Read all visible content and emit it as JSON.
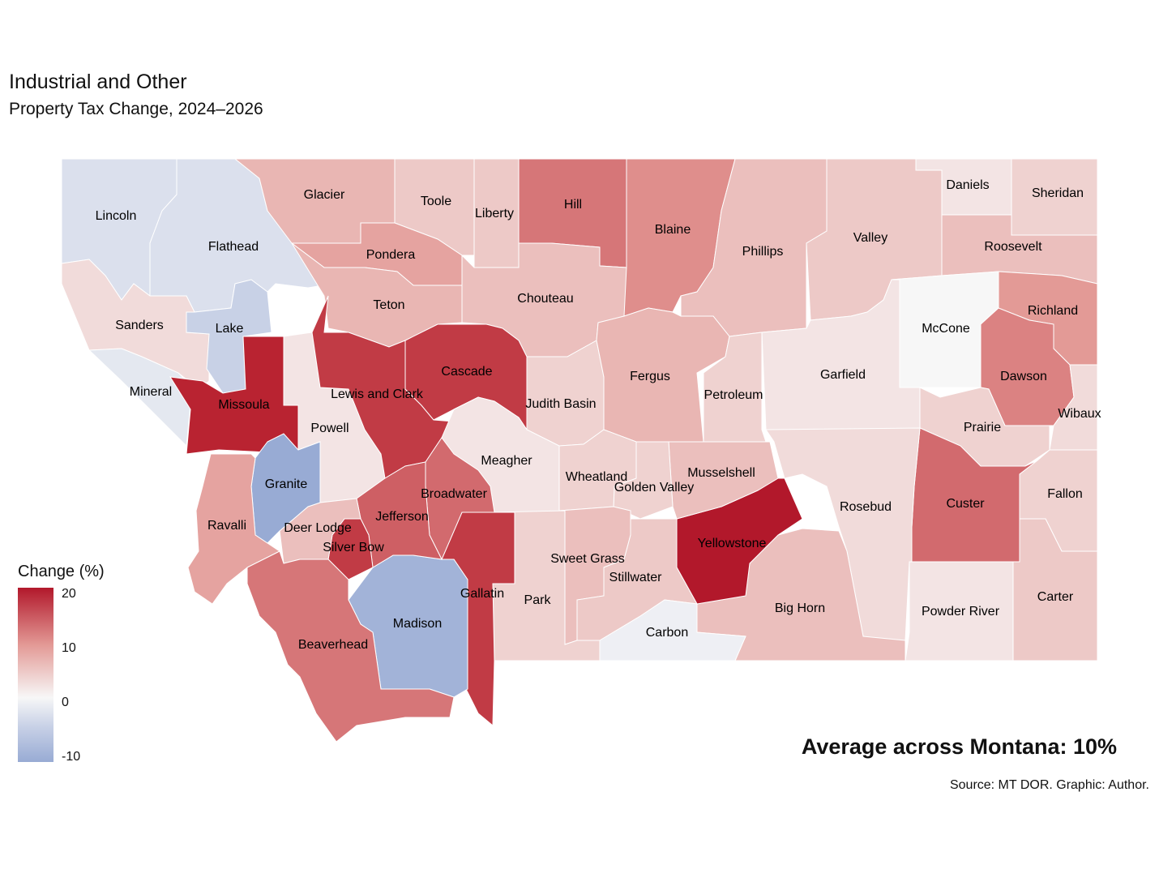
{
  "title": "Industrial and Other",
  "subtitle": "Property Tax Change, 2024–2026",
  "legend": {
    "title": "Change (%)",
    "ticks": [
      "20",
      "10",
      "0",
      "-10"
    ],
    "colors": {
      "high": "#b2182b",
      "mid": "#f7f7f7",
      "low": "#98abd4"
    },
    "range": [
      -10,
      22
    ]
  },
  "annotation": "Average across Montana: 10%",
  "source": "Source: MT DOR. Graphic: Author.",
  "counties": [
    {
      "name": "Lincoln",
      "value": -3
    },
    {
      "name": "Flathead",
      "value": -3
    },
    {
      "name": "Glacier",
      "value": 7
    },
    {
      "name": "Toole",
      "value": 5
    },
    {
      "name": "Liberty",
      "value": 5
    },
    {
      "name": "Hill",
      "value": 13
    },
    {
      "name": "Blaine",
      "value": 11
    },
    {
      "name": "Phillips",
      "value": 6
    },
    {
      "name": "Valley",
      "value": 5
    },
    {
      "name": "Daniels",
      "value": 2
    },
    {
      "name": "Sheridan",
      "value": 4
    },
    {
      "name": "Roosevelt",
      "value": 6
    },
    {
      "name": "Pondera",
      "value": 9
    },
    {
      "name": "Teton",
      "value": 7
    },
    {
      "name": "Chouteau",
      "value": 6
    },
    {
      "name": "Sanders",
      "value": 3
    },
    {
      "name": "Lake",
      "value": -5
    },
    {
      "name": "Mineral",
      "value": -2
    },
    {
      "name": "Missoula",
      "value": 20
    },
    {
      "name": "Powell",
      "value": 2
    },
    {
      "name": "Lewis and Clark",
      "value": 18
    },
    {
      "name": "Cascade",
      "value": 18
    },
    {
      "name": "Judith Basin",
      "value": 4
    },
    {
      "name": "Meagher",
      "value": 2
    },
    {
      "name": "Fergus",
      "value": 7
    },
    {
      "name": "Petroleum",
      "value": 4
    },
    {
      "name": "Garfield",
      "value": 2
    },
    {
      "name": "McCone",
      "value": 0
    },
    {
      "name": "Richland",
      "value": 10
    },
    {
      "name": "Dawson",
      "value": 12
    },
    {
      "name": "Wibaux",
      "value": 3
    },
    {
      "name": "Prairie",
      "value": 4
    },
    {
      "name": "Custer",
      "value": 14
    },
    {
      "name": "Fallon",
      "value": 4
    },
    {
      "name": "Carter",
      "value": 5
    },
    {
      "name": "Powder River",
      "value": 2
    },
    {
      "name": "Rosebud",
      "value": 3
    },
    {
      "name": "Big Horn",
      "value": 6
    },
    {
      "name": "Yellowstone",
      "value": 22
    },
    {
      "name": "Musselshell",
      "value": 6
    },
    {
      "name": "Golden Valley",
      "value": 4
    },
    {
      "name": "Wheatland",
      "value": 4
    },
    {
      "name": "Sweet Grass",
      "value": 6
    },
    {
      "name": "Stillwater",
      "value": 5
    },
    {
      "name": "Carbon",
      "value": -1
    },
    {
      "name": "Park",
      "value": 4
    },
    {
      "name": "Gallatin",
      "value": 18
    },
    {
      "name": "Madison",
      "value": -9
    },
    {
      "name": "Broadwater",
      "value": 14
    },
    {
      "name": "Jefferson",
      "value": 15
    },
    {
      "name": "Silver Bow",
      "value": 18
    },
    {
      "name": "Deer Lodge",
      "value": 6
    },
    {
      "name": "Granite",
      "value": -10
    },
    {
      "name": "Ravalli",
      "value": 9
    },
    {
      "name": "Beaverhead",
      "value": 13
    }
  ]
}
